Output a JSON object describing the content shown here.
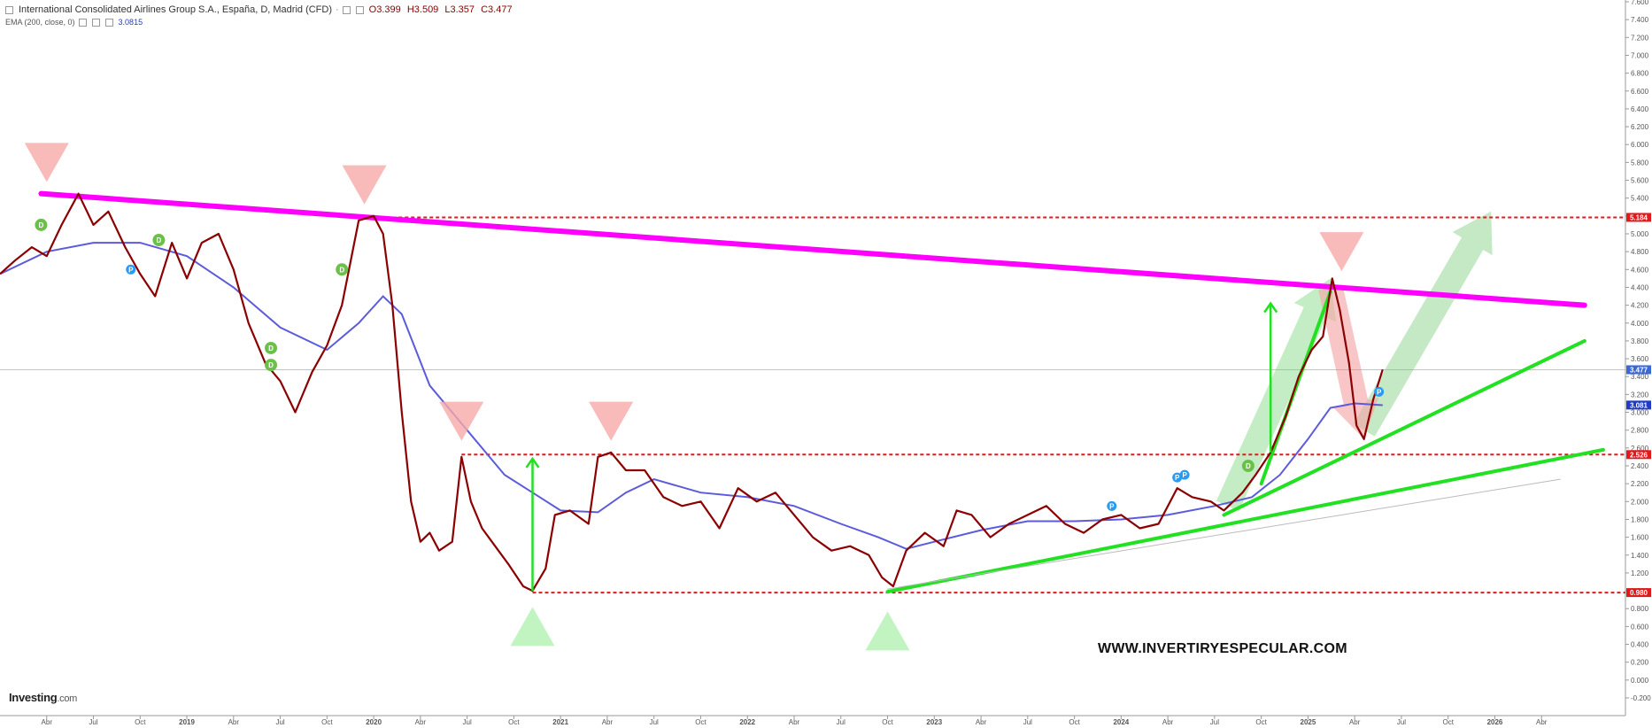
{
  "header": {
    "title": "International Consolidated Airlines Group S.A., España, D, Madrid (CFD)",
    "ohlc": {
      "open": "O3.399",
      "high": "H3.509",
      "low": "L3.357",
      "close": "C3.477"
    },
    "indicator": "EMA (200, close, 0)",
    "indicator_value": "3.0815"
  },
  "branding": {
    "logo_main": "Investing",
    "logo_suffix": ".com"
  },
  "watermark": "WWW.INVERTIRYESPECULAR.COM",
  "colors": {
    "price": "#8b0000",
    "ema": "#5b5bdc",
    "resistance_trendline": "#ff00ff",
    "support_trendlines": "#22e022",
    "dashed_levels": "#e0191b",
    "sell_marker": "#f7a9a9",
    "buy_marker": "#b7f2b7",
    "dividend_marker": "#6cc04a",
    "split_marker": "#2a9bf2"
  },
  "chart_data": {
    "type": "line",
    "yaxis": {
      "ticks": [
        "7.600",
        "7.400",
        "7.200",
        "7.000",
        "6.800",
        "6.600",
        "6.400",
        "6.200",
        "6.000",
        "5.800",
        "5.600",
        "5.400",
        "5.200",
        "5.000",
        "4.800",
        "4.600",
        "4.400",
        "4.200",
        "4.000",
        "3.800",
        "3.600",
        "3.400",
        "3.200",
        "3.000",
        "2.800",
        "2.600",
        "2.400",
        "2.200",
        "2.000",
        "1.800",
        "1.600",
        "1.400",
        "1.200",
        "1.000",
        "0.800",
        "0.600",
        "0.400",
        "0.200",
        "0.000",
        "-0.200"
      ],
      "range": [
        -0.2,
        7.6
      ]
    },
    "xaxis": {
      "ticks": [
        {
          "label": "Abr",
          "t": 2018.25
        },
        {
          "label": "Jul",
          "t": 2018.5
        },
        {
          "label": "Oct",
          "t": 2018.75
        },
        {
          "label": "2019",
          "t": 2019.0,
          "bold": true
        },
        {
          "label": "Abr",
          "t": 2019.25
        },
        {
          "label": "Jul",
          "t": 2019.5
        },
        {
          "label": "Oct",
          "t": 2019.75
        },
        {
          "label": "2020",
          "t": 2020.0,
          "bold": true
        },
        {
          "label": "Abr",
          "t": 2020.25
        },
        {
          "label": "Jul",
          "t": 2020.5
        },
        {
          "label": "Oct",
          "t": 2020.75
        },
        {
          "label": "2021",
          "t": 2021.0,
          "bold": true
        },
        {
          "label": "Abr",
          "t": 2021.25
        },
        {
          "label": "Jul",
          "t": 2021.5
        },
        {
          "label": "Oct",
          "t": 2021.75
        },
        {
          "label": "2022",
          "t": 2022.0,
          "bold": true
        },
        {
          "label": "Abr",
          "t": 2022.25
        },
        {
          "label": "Jul",
          "t": 2022.5
        },
        {
          "label": "Oct",
          "t": 2022.75
        },
        {
          "label": "2023",
          "t": 2023.0,
          "bold": true
        },
        {
          "label": "Abr",
          "t": 2023.25
        },
        {
          "label": "Jul",
          "t": 2023.5
        },
        {
          "label": "Oct",
          "t": 2023.75
        },
        {
          "label": "2024",
          "t": 2024.0,
          "bold": true
        },
        {
          "label": "Abr",
          "t": 2024.25
        },
        {
          "label": "Jul",
          "t": 2024.5
        },
        {
          "label": "Oct",
          "t": 2024.75
        },
        {
          "label": "2025",
          "t": 2025.0,
          "bold": true
        },
        {
          "label": "Abr",
          "t": 2025.25
        },
        {
          "label": "Jul",
          "t": 2025.5
        },
        {
          "label": "Oct",
          "t": 2025.75
        },
        {
          "label": "2026",
          "t": 2026.0,
          "bold": true
        },
        {
          "label": "Abr",
          "t": 2026.25
        }
      ]
    },
    "series": [
      {
        "name": "price",
        "points": [
          [
            2018.0,
            4.55
          ],
          [
            2018.08,
            4.7
          ],
          [
            2018.17,
            4.85
          ],
          [
            2018.25,
            4.75
          ],
          [
            2018.33,
            5.1
          ],
          [
            2018.42,
            5.45
          ],
          [
            2018.5,
            5.1
          ],
          [
            2018.58,
            5.25
          ],
          [
            2018.67,
            4.85
          ],
          [
            2018.75,
            4.55
          ],
          [
            2018.83,
            4.3
          ],
          [
            2018.92,
            4.9
          ],
          [
            2019.0,
            4.5
          ],
          [
            2019.08,
            4.9
          ],
          [
            2019.17,
            5.0
          ],
          [
            2019.25,
            4.6
          ],
          [
            2019.33,
            4.0
          ],
          [
            2019.42,
            3.55
          ],
          [
            2019.5,
            3.35
          ],
          [
            2019.58,
            3.0
          ],
          [
            2019.67,
            3.45
          ],
          [
            2019.75,
            3.75
          ],
          [
            2019.83,
            4.2
          ],
          [
            2019.92,
            5.15
          ],
          [
            2020.0,
            5.2
          ],
          [
            2020.05,
            5.0
          ],
          [
            2020.1,
            4.2
          ],
          [
            2020.15,
            3.0
          ],
          [
            2020.2,
            2.0
          ],
          [
            2020.25,
            1.55
          ],
          [
            2020.3,
            1.65
          ],
          [
            2020.35,
            1.45
          ],
          [
            2020.42,
            1.55
          ],
          [
            2020.47,
            2.5
          ],
          [
            2020.52,
            2.0
          ],
          [
            2020.58,
            1.7
          ],
          [
            2020.65,
            1.5
          ],
          [
            2020.72,
            1.3
          ],
          [
            2020.8,
            1.05
          ],
          [
            2020.85,
            1.0
          ],
          [
            2020.92,
            1.25
          ],
          [
            2020.97,
            1.85
          ],
          [
            2021.05,
            1.9
          ],
          [
            2021.15,
            1.75
          ],
          [
            2021.2,
            2.5
          ],
          [
            2021.27,
            2.55
          ],
          [
            2021.35,
            2.35
          ],
          [
            2021.45,
            2.35
          ],
          [
            2021.55,
            2.05
          ],
          [
            2021.65,
            1.95
          ],
          [
            2021.75,
            2.0
          ],
          [
            2021.85,
            1.7
          ],
          [
            2021.95,
            2.15
          ],
          [
            2022.05,
            2.0
          ],
          [
            2022.15,
            2.1
          ],
          [
            2022.25,
            1.85
          ],
          [
            2022.35,
            1.6
          ],
          [
            2022.45,
            1.45
          ],
          [
            2022.55,
            1.5
          ],
          [
            2022.65,
            1.4
          ],
          [
            2022.72,
            1.15
          ],
          [
            2022.78,
            1.05
          ],
          [
            2022.85,
            1.45
          ],
          [
            2022.95,
            1.65
          ],
          [
            2023.05,
            1.5
          ],
          [
            2023.12,
            1.9
          ],
          [
            2023.2,
            1.85
          ],
          [
            2023.3,
            1.6
          ],
          [
            2023.4,
            1.75
          ],
          [
            2023.5,
            1.85
          ],
          [
            2023.6,
            1.95
          ],
          [
            2023.7,
            1.75
          ],
          [
            2023.8,
            1.65
          ],
          [
            2023.9,
            1.8
          ],
          [
            2024.0,
            1.85
          ],
          [
            2024.1,
            1.7
          ],
          [
            2024.2,
            1.75
          ],
          [
            2024.3,
            2.15
          ],
          [
            2024.38,
            2.05
          ],
          [
            2024.48,
            2.0
          ],
          [
            2024.55,
            1.9
          ],
          [
            2024.65,
            2.1
          ],
          [
            2024.72,
            2.3
          ],
          [
            2024.8,
            2.55
          ],
          [
            2024.88,
            2.95
          ],
          [
            2024.95,
            3.4
          ],
          [
            2025.02,
            3.7
          ],
          [
            2025.08,
            3.85
          ],
          [
            2025.13,
            4.5
          ],
          [
            2025.17,
            4.15
          ],
          [
            2025.22,
            3.55
          ],
          [
            2025.26,
            2.85
          ],
          [
            2025.3,
            2.7
          ],
          [
            2025.35,
            3.15
          ],
          [
            2025.4,
            3.48
          ]
        ]
      },
      {
        "name": "EMA",
        "points": [
          [
            2018.0,
            4.55
          ],
          [
            2018.25,
            4.8
          ],
          [
            2018.5,
            4.9
          ],
          [
            2018.75,
            4.9
          ],
          [
            2019.0,
            4.75
          ],
          [
            2019.25,
            4.4
          ],
          [
            2019.5,
            3.95
          ],
          [
            2019.75,
            3.7
          ],
          [
            2019.92,
            4.0
          ],
          [
            2020.05,
            4.3
          ],
          [
            2020.15,
            4.1
          ],
          [
            2020.3,
            3.3
          ],
          [
            2020.5,
            2.8
          ],
          [
            2020.7,
            2.3
          ],
          [
            2020.85,
            2.1
          ],
          [
            2021.0,
            1.9
          ],
          [
            2021.2,
            1.88
          ],
          [
            2021.35,
            2.1
          ],
          [
            2021.5,
            2.25
          ],
          [
            2021.75,
            2.1
          ],
          [
            2022.0,
            2.05
          ],
          [
            2022.25,
            1.95
          ],
          [
            2022.5,
            1.75
          ],
          [
            2022.7,
            1.6
          ],
          [
            2022.85,
            1.47
          ],
          [
            2023.0,
            1.55
          ],
          [
            2023.25,
            1.68
          ],
          [
            2023.5,
            1.78
          ],
          [
            2023.75,
            1.78
          ],
          [
            2024.0,
            1.8
          ],
          [
            2024.25,
            1.85
          ],
          [
            2024.5,
            1.95
          ],
          [
            2024.7,
            2.05
          ],
          [
            2024.85,
            2.3
          ],
          [
            2025.0,
            2.7
          ],
          [
            2025.12,
            3.05
          ],
          [
            2025.25,
            3.1
          ],
          [
            2025.4,
            3.08
          ]
        ]
      }
    ],
    "horizontal_levels": [
      {
        "value": 5.184,
        "label": "5.184",
        "tag_color": "#e0191b"
      },
      {
        "value": 2.526,
        "label": "2.526",
        "tag_color": "#e0191b"
      },
      {
        "value": 0.98,
        "label": "0.980",
        "tag_color": "#e0191b"
      }
    ],
    "current_levels": [
      {
        "value": 3.477,
        "label": "3.477",
        "tag_color": "#3a68d8"
      },
      {
        "value": 3.081,
        "label": "3.081",
        "tag_color": "#1f3cc8"
      }
    ],
    "trendlines": [
      {
        "kind": "resistance",
        "from": [
          2018.22,
          5.45
        ],
        "to": [
          2026.48,
          4.2
        ],
        "color": "#ff00ff",
        "width": 6
      },
      {
        "kind": "support",
        "from": [
          2022.75,
          0.99
        ],
        "to": [
          2026.58,
          2.58
        ],
        "color": "#22e022",
        "width": 4
      },
      {
        "kind": "support",
        "from": [
          2024.55,
          1.85
        ],
        "to": [
          2026.48,
          3.8
        ],
        "color": "#22e022",
        "width": 4
      },
      {
        "kind": "support",
        "from": [
          2024.75,
          2.2
        ],
        "to": [
          2025.12,
          4.35
        ],
        "color": "#22e022",
        "width": 4
      },
      {
        "kind": "thin",
        "from": [
          2022.75,
          1.02
        ],
        "to": [
          2026.35,
          2.25
        ],
        "color": "#bbbbbb",
        "width": 1
      }
    ],
    "arrows": [
      {
        "kind": "up-line",
        "from": [
          2020.85,
          1.0
        ],
        "to": [
          2020.85,
          2.48
        ],
        "color": "#22e022"
      },
      {
        "kind": "up-line",
        "from": [
          2024.8,
          2.55
        ],
        "to": [
          2024.8,
          4.22
        ],
        "color": "#22e022"
      },
      {
        "kind": "fat-up",
        "from": [
          2024.57,
          1.95
        ],
        "to": [
          2025.12,
          4.5
        ],
        "color": "#a6e3a6"
      },
      {
        "kind": "fat-up",
        "from": [
          2025.3,
          2.8
        ],
        "to": [
          2025.98,
          5.25
        ],
        "color": "#a6dca6"
      },
      {
        "kind": "fat-down",
        "from": [
          2025.12,
          4.4
        ],
        "to": [
          2025.3,
          2.7
        ],
        "color": "#f4a8a8"
      }
    ],
    "markers": [
      {
        "kind": "sell",
        "t": 2018.25,
        "v": 5.8
      },
      {
        "kind": "sell",
        "t": 2019.95,
        "v": 5.55
      },
      {
        "kind": "sell",
        "t": 2020.47,
        "v": 2.9
      },
      {
        "kind": "sell",
        "t": 2021.27,
        "v": 2.9
      },
      {
        "kind": "sell",
        "t": 2025.18,
        "v": 4.8
      },
      {
        "kind": "buy",
        "t": 2020.85,
        "v": 0.6
      },
      {
        "kind": "buy",
        "t": 2022.75,
        "v": 0.55
      },
      {
        "kind": "dividend",
        "t": 2018.22,
        "v": 5.1,
        "label": "D"
      },
      {
        "kind": "dividend",
        "t": 2018.85,
        "v": 4.93,
        "label": "D"
      },
      {
        "kind": "dividend",
        "t": 2019.45,
        "v": 3.72,
        "label": "D"
      },
      {
        "kind": "dividend",
        "t": 2019.45,
        "v": 3.53,
        "label": "D"
      },
      {
        "kind": "dividend",
        "t": 2019.83,
        "v": 4.6,
        "label": "D"
      },
      {
        "kind": "dividend",
        "t": 2024.68,
        "v": 2.4,
        "label": "D"
      },
      {
        "kind": "split",
        "t": 2018.7,
        "v": 4.6,
        "label": "P"
      },
      {
        "kind": "split",
        "t": 2023.95,
        "v": 1.95,
        "label": "P"
      },
      {
        "kind": "split",
        "t": 2024.3,
        "v": 2.27,
        "label": "P"
      },
      {
        "kind": "split",
        "t": 2024.34,
        "v": 2.3,
        "label": "P"
      },
      {
        "kind": "split",
        "t": 2025.38,
        "v": 3.23,
        "label": "P"
      }
    ]
  }
}
